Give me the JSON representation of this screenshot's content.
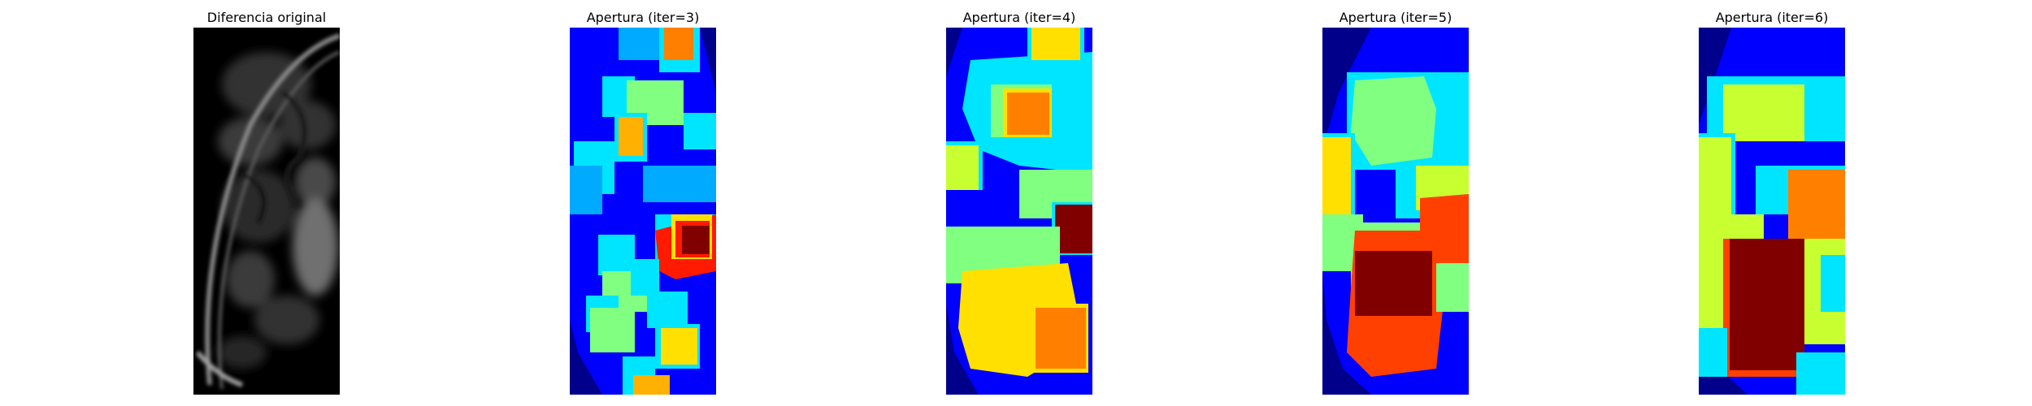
{
  "figure": {
    "panels": [
      {
        "title": "Diferencia original",
        "colormap": "gray"
      },
      {
        "title": "Apertura (iter=3)",
        "colormap": "jet"
      },
      {
        "title": "Apertura (iter=4)",
        "colormap": "jet"
      },
      {
        "title": "Apertura (iter=5)",
        "colormap": "jet"
      },
      {
        "title": "Apertura (iter=6)",
        "colormap": "jet"
      }
    ]
  },
  "colors": {
    "background": "#ffffff",
    "jet_dark_blue": "#00008b",
    "jet_blue": "#0000ff",
    "jet_azure": "#00aaff",
    "jet_cyan": "#00e5ff",
    "jet_green": "#80ff80",
    "jet_lime": "#c8ff30",
    "jet_yellow": "#ffe000",
    "jet_orange": "#ff8000",
    "jet_red_orange": "#ff4000",
    "jet_red": "#ff1a00",
    "jet_dark_red": "#800000"
  }
}
